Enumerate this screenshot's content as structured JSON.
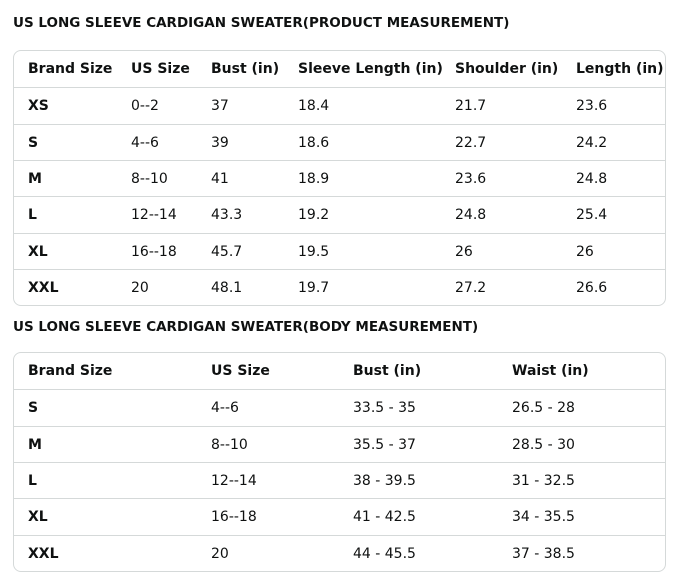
{
  "sections": [
    {
      "title": "US LONG SLEEVE CARDIGAN SWEATER(PRODUCT MEASUREMENT)",
      "table": {
        "header": [
          "Brand Size",
          "US Size",
          "Bust (in)",
          "Sleeve Length (in)",
          "Shoulder (in)",
          "Length (in)"
        ],
        "rows": [
          [
            "XS",
            "0--2",
            "37",
            "18.4",
            "21.7",
            "23.6"
          ],
          [
            "S",
            "4--6",
            "39",
            "18.6",
            "22.7",
            "24.2"
          ],
          [
            "M",
            "8--10",
            "41",
            "18.9",
            "23.6",
            "24.8"
          ],
          [
            "L",
            "12--14",
            "43.3",
            "19.2",
            "24.8",
            "25.4"
          ],
          [
            "XL",
            "16--18",
            "45.7",
            "19.5",
            "26",
            "26"
          ],
          [
            "XXL",
            "20",
            "48.1",
            "19.7",
            "27.2",
            "26.6"
          ]
        ]
      }
    },
    {
      "title": "US LONG SLEEVE CARDIGAN SWEATER(BODY MEASUREMENT)",
      "table": {
        "header": [
          "Brand Size",
          "US Size",
          "Bust (in)",
          "Waist (in)"
        ],
        "rows": [
          [
            "S",
            "4--6",
            "33.5 - 35",
            "26.5 - 28"
          ],
          [
            "M",
            "8--10",
            "35.5 - 37",
            "28.5 - 30"
          ],
          [
            "L",
            "12--14",
            "38 - 39.5",
            "31 - 32.5"
          ],
          [
            "XL",
            "16--18",
            "41 - 42.5",
            "34 - 35.5"
          ],
          [
            "XXL",
            "20",
            "44 - 45.5",
            "37 - 38.5"
          ]
        ]
      }
    }
  ]
}
